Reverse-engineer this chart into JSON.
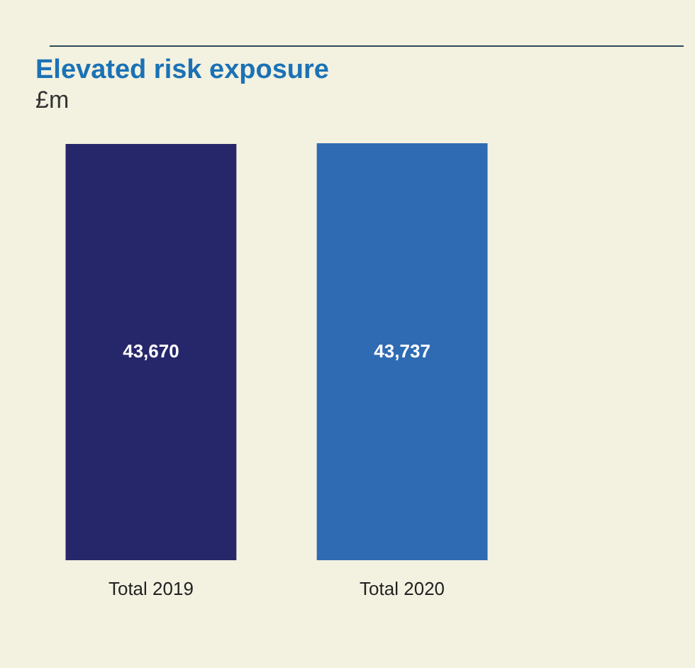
{
  "chart_data": {
    "type": "bar",
    "title": "Elevated risk exposure",
    "subtitle": "£m",
    "categories": [
      "Total 2019",
      "Total 2020"
    ],
    "values": [
      43670,
      43737
    ],
    "colors": [
      "#26276a",
      "#2e6bb3"
    ],
    "value_labels": [
      "43,670",
      "43,737"
    ]
  }
}
